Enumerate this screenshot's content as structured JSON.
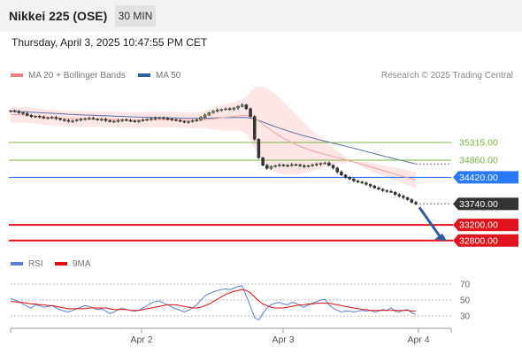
{
  "header": {
    "title": "Nikkei 225 (OSE)",
    "timeframe": "30 MIN"
  },
  "datetime": "Thursday, April 3, 2025 10:47:55 PM CET",
  "legend": {
    "ma20": {
      "label": "MA 20 + Bollinger Bands",
      "color": "#f08080"
    },
    "ma50": {
      "label": "MA 50",
      "color": "#2f5d9e"
    },
    "credit": "Research © 2025 Trading Central"
  },
  "rsi_legend": {
    "rsi": {
      "label": "RSI",
      "color": "#5b7fd6"
    },
    "ma9": {
      "label": "9MA",
      "color": "#e01010"
    }
  },
  "chart_data": [
    {
      "type": "candlestick",
      "title": "Nikkei 225 (OSE)",
      "xlabels": [
        "Apr 2",
        "Apr 3",
        "Apr 4"
      ],
      "ylim": [
        32500,
        36700
      ],
      "levels": [
        {
          "value": 35315,
          "label": "35315.00",
          "kind": "resistance",
          "color": "#7cb342"
        },
        {
          "value": 34860,
          "label": "34860.00",
          "kind": "resistance",
          "color": "#7cb342"
        },
        {
          "value": 34420,
          "label": "34420.00",
          "kind": "pivot",
          "color": "#2979ff"
        },
        {
          "value": 33740,
          "label": "33740.00",
          "kind": "last",
          "color": "#333333"
        },
        {
          "value": 33200,
          "label": "33200.00",
          "kind": "support",
          "color": "#e0141c"
        },
        {
          "value": 32800,
          "label": "32800.00",
          "kind": "support",
          "color": "#e0141c"
        }
      ],
      "close": [
        36130,
        36110,
        36080,
        36060,
        36010,
        35980,
        35990,
        35970,
        35940,
        35950,
        35960,
        35930,
        35900,
        35880,
        35860,
        35870,
        35890,
        35910,
        35930,
        35940,
        35920,
        35900,
        35910,
        35880,
        35850,
        35860,
        35880,
        35900,
        35880,
        35870,
        35860,
        35870,
        35890,
        35910,
        35930,
        35940,
        35950,
        35930,
        35920,
        35900,
        35880,
        35860,
        35840,
        35850,
        35870,
        35900,
        35960,
        36020,
        36080,
        36120,
        36150,
        36160,
        36180,
        36170,
        36200,
        36240,
        36280,
        36180,
        35980,
        35400,
        34920,
        34730,
        34650,
        34700,
        34720,
        34740,
        34730,
        34720,
        34750,
        34740,
        34720,
        34700,
        34720,
        34740,
        34760,
        34780,
        34790,
        34730,
        34660,
        34560,
        34480,
        34420,
        34380,
        34330,
        34300,
        34280,
        34240,
        34200,
        34150,
        34120,
        34080,
        34060,
        34040,
        33980,
        33940,
        33900,
        33850,
        33780,
        33740
      ],
      "ma20": [
        36030,
        36030,
        36025,
        36020,
        36015,
        36005,
        35995,
        35985,
        35975,
        35965,
        35955,
        35945,
        35938,
        35930,
        35925,
        35922,
        35920,
        35918,
        35916,
        35915,
        35914,
        35912,
        35910,
        35908,
        35904,
        35900,
        35898,
        35896,
        35894,
        35892,
        35890,
        35890,
        35891,
        35893,
        35896,
        35898,
        35900,
        35900,
        35900,
        35898,
        35896,
        35892,
        35888,
        35885,
        35884,
        35886,
        35892,
        35900,
        35910,
        35922,
        35935,
        35948,
        35960,
        35972,
        35985,
        35998,
        36012,
        36010,
        35990,
        35940,
        35870,
        35790,
        35710,
        35630,
        35555,
        35490,
        35430,
        35370,
        35315,
        35265,
        35218,
        35175,
        35135,
        35100,
        35068,
        35040,
        35012,
        34985,
        34958,
        34930,
        34900,
        34872,
        34844,
        34815,
        34786,
        34756,
        34726,
        34694,
        34662,
        34630,
        34598,
        34567,
        34537,
        34505,
        34474,
        34442,
        34411,
        34380,
        34350
      ],
      "bb_upper": [
        36230,
        36230,
        36225,
        36220,
        36215,
        36205,
        36195,
        36185,
        36175,
        36165,
        36155,
        36145,
        36138,
        36130,
        36125,
        36122,
        36120,
        36118,
        36116,
        36115,
        36114,
        36112,
        36110,
        36108,
        36104,
        36100,
        36098,
        36096,
        36094,
        36092,
        36090,
        36090,
        36091,
        36093,
        36096,
        36098,
        36100,
        36100,
        36100,
        36098,
        36096,
        36092,
        36088,
        36085,
        36084,
        36086,
        36092,
        36120,
        36160,
        36200,
        36240,
        36280,
        36310,
        36330,
        36350,
        36380,
        36420,
        36500,
        36620,
        36720,
        36760,
        36740,
        36700,
        36640,
        36560,
        36470,
        36370,
        36260,
        36150,
        36040,
        35930,
        35820,
        35720,
        35620,
        35520,
        35430,
        35340,
        35260,
        35180,
        35100,
        35020,
        34950,
        34880,
        34810,
        34750,
        34690,
        34640,
        34590,
        34540,
        34500,
        34460,
        34420,
        34380,
        34340,
        34300,
        34260,
        34220,
        34180,
        34140
      ],
      "bb_lower": [
        35830,
        35830,
        35825,
        35820,
        35815,
        35805,
        35795,
        35785,
        35775,
        35765,
        35755,
        35745,
        35738,
        35730,
        35725,
        35722,
        35720,
        35718,
        35716,
        35715,
        35714,
        35712,
        35710,
        35708,
        35704,
        35700,
        35698,
        35696,
        35694,
        35692,
        35690,
        35690,
        35691,
        35693,
        35696,
        35698,
        35700,
        35700,
        35700,
        35698,
        35696,
        35692,
        35688,
        35685,
        35684,
        35686,
        35692,
        35680,
        35660,
        35644,
        35630,
        35616,
        35610,
        35614,
        35620,
        35616,
        35604,
        35520,
        35360,
        35160,
        34980,
        34840,
        34720,
        34620,
        34550,
        34510,
        34490,
        34480,
        34480,
        34490,
        34506,
        34530,
        34550,
        34580,
        34616,
        34650,
        34684,
        34710,
        34736,
        34760,
        34780,
        34794,
        34808,
        34820,
        34822,
        34822,
        34812,
        34798,
        34784,
        34760,
        34736,
        34714,
        34694,
        34670,
        34648,
        34624,
        34602,
        34580,
        34560
      ],
      "ma50": [
        36120,
        36115,
        36110,
        36105,
        36100,
        36094,
        36088,
        36082,
        36076,
        36070,
        36064,
        36058,
        36052,
        36046,
        36040,
        36035,
        36030,
        36025,
        36020,
        36016,
        36012,
        36008,
        36004,
        36000,
        35996,
        35992,
        35988,
        35984,
        35980,
        35976,
        35972,
        35968,
        35965,
        35962,
        35959,
        35956,
        35953,
        35950,
        35948,
        35946,
        35944,
        35942,
        35940,
        35938,
        35937,
        35936,
        35936,
        35937,
        35940,
        35944,
        35948,
        35950,
        35952,
        35954,
        35956,
        35958,
        35960,
        35955,
        35940,
        35915,
        35880,
        35840,
        35800,
        35760,
        35720,
        35685,
        35650,
        35615,
        35580,
        35548,
        35516,
        35486,
        35458,
        35430,
        35402,
        35376,
        35350,
        35324,
        35298,
        35272,
        35246,
        35220,
        35194,
        35168,
        35140,
        35112,
        35084,
        35056,
        35028,
        35000,
        34972,
        34946,
        34920,
        34894,
        34868,
        34842,
        34816,
        34790,
        34765
      ]
    },
    {
      "type": "line",
      "title": "RSI",
      "ylim": [
        20,
        80
      ],
      "yticks": [
        30,
        50,
        70
      ],
      "series": [
        {
          "name": "RSI",
          "values": [
            52,
            50,
            48,
            45,
            42,
            40,
            44,
            43,
            41,
            42,
            43,
            40,
            38,
            36,
            35,
            37,
            39,
            41,
            43,
            42,
            40,
            38,
            39,
            36,
            33,
            35,
            38,
            40,
            38,
            37,
            36,
            37,
            40,
            43,
            46,
            48,
            49,
            46,
            44,
            41,
            39,
            37,
            35,
            37,
            40,
            44,
            50,
            55,
            58,
            60,
            62,
            63,
            64,
            63,
            65,
            67,
            68,
            55,
            42,
            28,
            25,
            33,
            40,
            44,
            46,
            47,
            45,
            44,
            47,
            46,
            43,
            41,
            44,
            46,
            48,
            50,
            51,
            44,
            40,
            37,
            35,
            36,
            36,
            35,
            36,
            37,
            36,
            37,
            35,
            36,
            38,
            37,
            40,
            36,
            35,
            37,
            38,
            34,
            32
          ]
        },
        {
          "name": "9MA",
          "values": [
            48,
            48,
            47,
            47,
            46,
            45,
            45,
            44,
            44,
            43,
            43,
            42,
            41,
            40,
            39,
            39,
            39,
            39,
            39,
            40,
            40,
            40,
            40,
            40,
            39,
            38,
            38,
            38,
            38,
            37,
            37,
            37,
            38,
            39,
            40,
            41,
            42,
            43,
            44,
            44,
            44,
            43,
            42,
            41,
            40,
            40,
            41,
            43,
            45,
            48,
            51,
            54,
            57,
            59,
            61,
            62,
            63,
            62,
            59,
            54,
            49,
            45,
            43,
            41,
            40,
            40,
            40,
            41,
            42,
            43,
            44,
            44,
            45,
            45,
            46,
            46,
            46,
            46,
            45,
            44,
            43,
            42,
            41,
            40,
            39,
            38,
            38,
            37,
            37,
            37,
            37,
            37,
            37,
            37,
            37,
            37,
            37,
            36,
            36
          ]
        }
      ]
    }
  ]
}
